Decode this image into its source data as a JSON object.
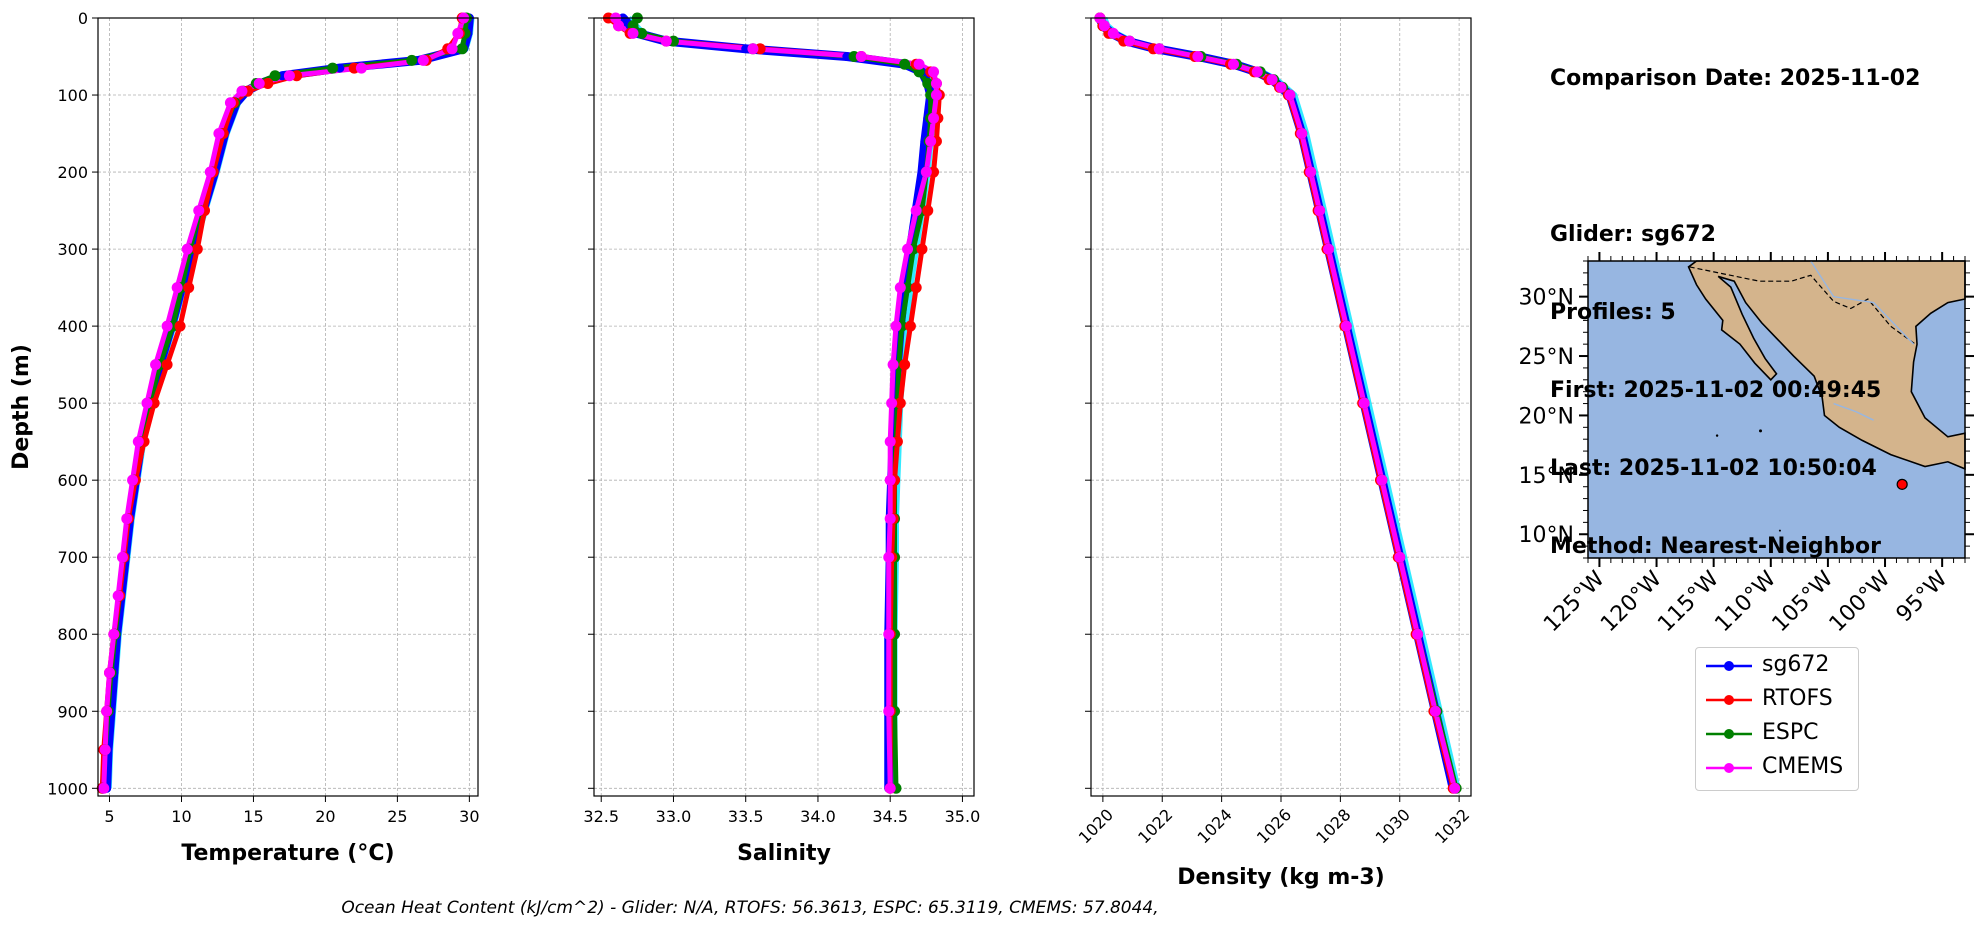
{
  "info": {
    "comparison": "Comparison Date: 2025-11-02",
    "glider": "Glider: sg672",
    "profiles": "Profiles: 5",
    "first": "First: 2025-11-02 00:49:45",
    "last": "Last: 2025-11-02 10:50:04",
    "method": "Method: Nearest-Neighbor"
  },
  "footer": "Ocean Heat Content (kJ/cm^2) - Glider: N/A,  RTOFS: 56.3613,  ESPC: 65.3119,  CMEMS: 57.8044,",
  "colors": {
    "sg672": "#0000ff",
    "RTOFS": "#ff0000",
    "ESPC": "#008000",
    "CMEMS": "#ff00ff",
    "glider_faint": "#00e5ff",
    "ocean": "#97b6e1",
    "land": "#d4b48c"
  },
  "chart_data": [
    {
      "type": "line",
      "xlabel": "Temperature (°C)",
      "ylabel": "Depth (m)",
      "xlim": [
        4.2,
        30.6
      ],
      "ylim": [
        1010,
        0
      ],
      "xticks": [
        5,
        10,
        15,
        20,
        25,
        30
      ],
      "yticks": [
        0,
        100,
        200,
        300,
        400,
        500,
        600,
        700,
        800,
        900,
        1000
      ],
      "grid": true,
      "depth": [
        0,
        20,
        40,
        55,
        65,
        75,
        85,
        95,
        110,
        150,
        200,
        250,
        300,
        350,
        400,
        450,
        500,
        550,
        600,
        650,
        700,
        750,
        800,
        850,
        900,
        950,
        1000
      ],
      "series": [
        {
          "name": "sg672",
          "values": [
            30.0,
            29.9,
            29.6,
            26.5,
            21.0,
            17.0,
            15.5,
            14.5,
            13.8,
            13.0,
            12.3,
            11.5,
            10.7,
            10.0,
            9.3,
            8.5,
            7.8,
            7.2,
            6.8,
            6.4,
            6.1,
            5.8,
            5.5,
            5.3,
            5.1,
            4.9,
            4.8
          ]
        },
        {
          "name": "RTOFS",
          "values": [
            29.5,
            29.3,
            28.5,
            27.0,
            22.0,
            18.0,
            16.0,
            14.6,
            13.6,
            12.9,
            12.2,
            11.6,
            11.1,
            10.5,
            9.9,
            9.0,
            8.1,
            7.4,
            6.8,
            6.3,
            6.0,
            5.7,
            5.3,
            5.0,
            4.8,
            4.6,
            4.5
          ]
        },
        {
          "name": "ESPC",
          "values": [
            29.8,
            29.7,
            29.5,
            26.0,
            20.5,
            16.5,
            15.2,
            14.3,
            13.7,
            12.8,
            12.1,
            11.3,
            10.6,
            10.0,
            9.4,
            8.5,
            7.8,
            7.1,
            6.7,
            6.3,
            6.0,
            5.7,
            5.4,
            5.1,
            4.9,
            4.7,
            4.5
          ]
        },
        {
          "name": "CMEMS",
          "values": [
            29.6,
            29.2,
            28.8,
            26.8,
            22.5,
            17.5,
            15.4,
            14.2,
            13.4,
            12.6,
            12.0,
            11.2,
            10.4,
            9.7,
            9.0,
            8.2,
            7.6,
            7.0,
            6.6,
            6.2,
            5.9,
            5.6,
            5.3,
            5.0,
            4.8,
            4.7,
            4.6
          ]
        }
      ]
    },
    {
      "type": "line",
      "xlabel": "Salinity",
      "ylabel": "",
      "xlim": [
        32.45,
        35.08
      ],
      "ylim": [
        1010,
        0
      ],
      "xticks": [
        32.5,
        33.0,
        33.5,
        34.0,
        34.5,
        35.0
      ],
      "xticklabels": [
        "32.5",
        "33.0",
        "33.5",
        "34.0",
        "34.5",
        "35.0"
      ],
      "grid": true,
      "depth": [
        0,
        10,
        20,
        30,
        40,
        50,
        60,
        70,
        85,
        100,
        130,
        160,
        200,
        250,
        300,
        350,
        400,
        450,
        500,
        550,
        600,
        650,
        700,
        800,
        900,
        1000
      ],
      "series": [
        {
          "name": "sg672",
          "values": [
            32.65,
            32.7,
            32.75,
            32.95,
            33.5,
            34.2,
            34.6,
            34.72,
            34.76,
            34.78,
            34.76,
            34.74,
            34.72,
            34.68,
            34.64,
            34.6,
            34.57,
            34.55,
            34.53,
            34.52,
            34.51,
            34.5,
            34.5,
            34.49,
            34.49,
            34.49
          ]
        },
        {
          "name": "RTOFS",
          "values": [
            32.55,
            32.62,
            32.7,
            32.95,
            33.6,
            34.3,
            34.68,
            34.78,
            34.82,
            34.84,
            34.83,
            34.82,
            34.8,
            34.76,
            34.72,
            34.68,
            34.64,
            34.6,
            34.57,
            34.55,
            34.53,
            34.52,
            34.51,
            34.5,
            34.5,
            34.5
          ]
        },
        {
          "name": "ESPC",
          "values": [
            32.75,
            32.72,
            32.78,
            33.0,
            33.55,
            34.25,
            34.6,
            34.7,
            34.76,
            34.78,
            34.78,
            34.77,
            34.75,
            34.72,
            34.66,
            34.62,
            34.58,
            34.56,
            34.55,
            34.54,
            34.53,
            34.53,
            34.53,
            34.53,
            34.53,
            34.54
          ]
        },
        {
          "name": "CMEMS",
          "values": [
            32.6,
            32.62,
            32.72,
            32.95,
            33.55,
            34.3,
            34.7,
            34.8,
            34.82,
            34.82,
            34.8,
            34.78,
            34.75,
            34.68,
            34.62,
            34.57,
            34.54,
            34.52,
            34.51,
            34.5,
            34.5,
            34.5,
            34.49,
            34.49,
            34.49,
            34.5
          ]
        }
      ]
    },
    {
      "type": "line",
      "xlabel": "Density (kg m-3)",
      "ylabel": "",
      "xlim": [
        1019.6,
        1032.4
      ],
      "ylim": [
        1010,
        0
      ],
      "xticks": [
        1020,
        1022,
        1024,
        1026,
        1028,
        1030,
        1032
      ],
      "grid": true,
      "depth": [
        0,
        10,
        20,
        30,
        40,
        50,
        60,
        70,
        80,
        90,
        100,
        150,
        200,
        250,
        300,
        400,
        500,
        600,
        700,
        800,
        900,
        1000
      ],
      "series": [
        {
          "name": "sg672",
          "values": [
            1019.9,
            1020.0,
            1020.3,
            1020.8,
            1021.8,
            1023.2,
            1024.4,
            1025.2,
            1025.7,
            1026.0,
            1026.3,
            1026.7,
            1027.0,
            1027.3,
            1027.6,
            1028.2,
            1028.8,
            1029.4,
            1030.0,
            1030.6,
            1031.2,
            1031.8
          ]
        },
        {
          "name": "RTOFS",
          "values": [
            1019.9,
            1020.0,
            1020.2,
            1020.7,
            1021.7,
            1023.1,
            1024.3,
            1025.1,
            1025.6,
            1025.95,
            1026.25,
            1026.65,
            1026.95,
            1027.25,
            1027.55,
            1028.15,
            1028.75,
            1029.35,
            1029.95,
            1030.55,
            1031.15,
            1031.8
          ]
        },
        {
          "name": "ESPC",
          "values": [
            1019.9,
            1020.0,
            1020.3,
            1020.9,
            1021.9,
            1023.3,
            1024.5,
            1025.3,
            1025.75,
            1026.05,
            1026.3,
            1026.7,
            1027.0,
            1027.3,
            1027.6,
            1028.2,
            1028.8,
            1029.4,
            1030.0,
            1030.6,
            1031.25,
            1031.9
          ]
        },
        {
          "name": "CMEMS",
          "values": [
            1019.9,
            1020.05,
            1020.35,
            1020.9,
            1021.9,
            1023.2,
            1024.4,
            1025.2,
            1025.7,
            1026.0,
            1026.3,
            1026.7,
            1027.0,
            1027.3,
            1027.6,
            1028.2,
            1028.8,
            1029.4,
            1030.0,
            1030.6,
            1031.2,
            1031.85
          ]
        }
      ]
    }
  ],
  "map": {
    "lat_ticks": [
      "30°N",
      "25°N",
      "20°N",
      "15°N",
      "10°N"
    ],
    "lon_ticks": [
      "125°W",
      "120°W",
      "115°W",
      "110°W",
      "105°W",
      "100°W",
      "95°W"
    ],
    "marker": {
      "lon": -98.5,
      "lat": 14.2
    },
    "lon_range": [
      -126,
      -93
    ],
    "lat_range": [
      8,
      33
    ]
  },
  "legend": [
    "sg672",
    "RTOFS",
    "ESPC",
    "CMEMS"
  ]
}
